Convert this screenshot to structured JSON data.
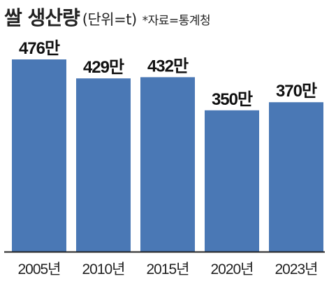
{
  "header": {
    "title": "쌀 생산량",
    "unit": "(단위=t)",
    "source": "*자료=통계청"
  },
  "colors": {
    "bar": "#4a78b5",
    "axis": "#222222",
    "text": "#111111"
  },
  "chart_data": {
    "type": "bar",
    "title": "쌀 생산량",
    "unit_note": "(단위=t)",
    "source_note": "*자료=통계청",
    "categories": [
      "2005년",
      "2010년",
      "2015년",
      "2020년",
      "2023년"
    ],
    "values": [
      476,
      429,
      432,
      350,
      370
    ],
    "value_labels": [
      "476만",
      "429만",
      "432만",
      "350만",
      "370만"
    ],
    "xlabel": "",
    "ylabel": "",
    "ylim": [
      0,
      476
    ],
    "grid": false,
    "legend": "none"
  }
}
